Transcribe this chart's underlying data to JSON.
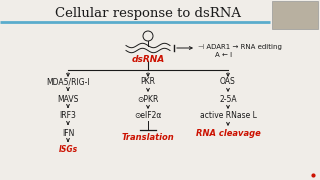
{
  "title": "Cellular response to dsRNA",
  "title_fontsize": 9.5,
  "slide_bg": "#f0ede8",
  "bar_color": "#5aaccc",
  "dsrna_label": "dsRNA",
  "dsrna_color": "#cc1100",
  "adar1_line1": "⊣ ADAR1 → RNA editing",
  "adar1_line2": "A ← I",
  "pathways": [
    "MDA5/RIG-I",
    "PKR",
    "OAS"
  ],
  "left_steps": [
    "MAVS",
    "IRF3",
    "IFN",
    "ISGs"
  ],
  "mid_steps": [
    "⊙PKR",
    "⊙eIF2α",
    "Translation"
  ],
  "right_steps": [
    "2-5A",
    "active RNase L",
    "RNA cleavage"
  ],
  "red_color": "#cc1100",
  "black": "#1a1a1a",
  "cam_bg": "#b8b0a0",
  "cam_edge": "#999999"
}
